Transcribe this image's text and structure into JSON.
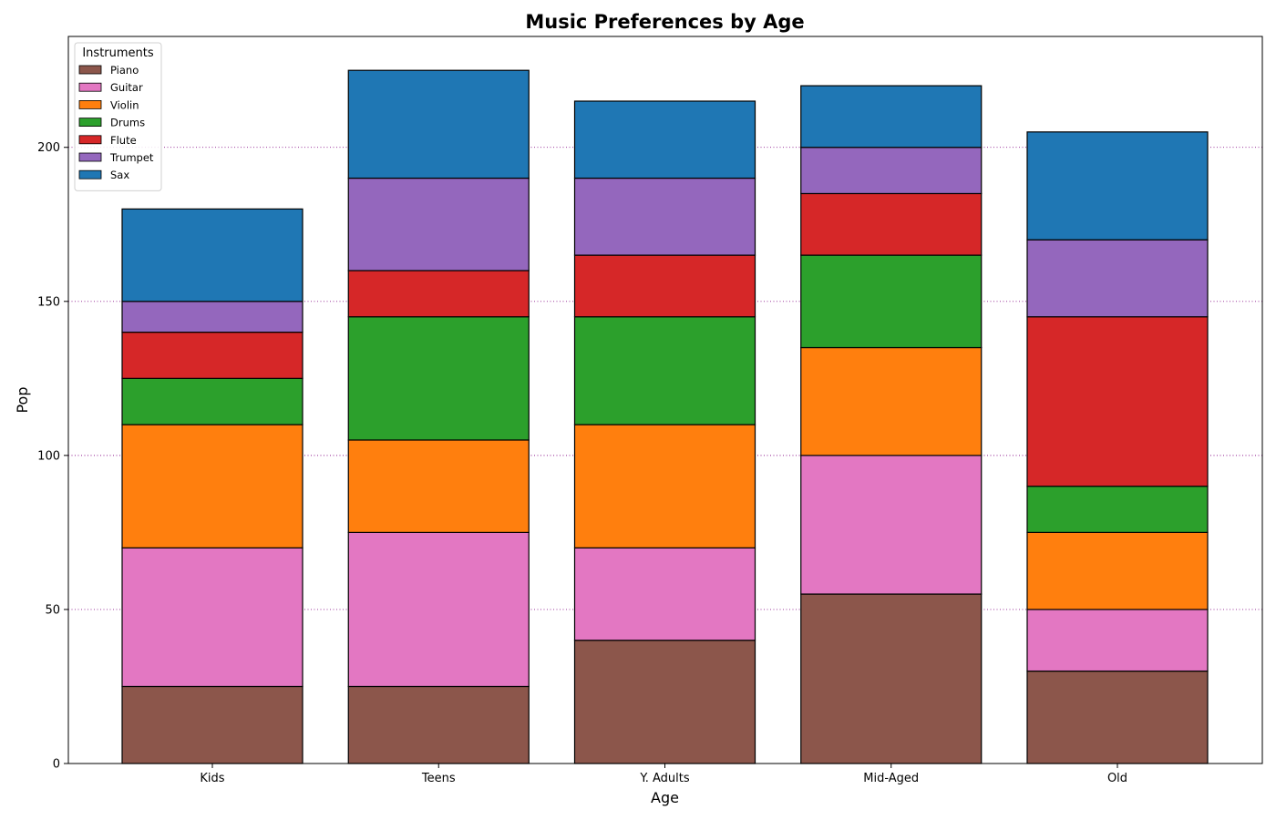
{
  "chart_data": {
    "type": "bar",
    "stacked": true,
    "title": "Music Preferences by Age",
    "xlabel": "Age",
    "ylabel": "Pop",
    "categories": [
      "Kids",
      "Teens",
      "Y. Adults",
      "Mid-Aged",
      "Old"
    ],
    "ylim": [
      0,
      236
    ],
    "yticks": [
      0,
      50,
      100,
      150,
      200
    ],
    "grid": {
      "axis": "y",
      "style": "dotted",
      "color": "#800080"
    },
    "legend": {
      "title": "Instruments",
      "placement": "top-left"
    },
    "series": [
      {
        "name": "Piano",
        "color": "#8c564b",
        "values": [
          25,
          25,
          40,
          55,
          30
        ]
      },
      {
        "name": "Guitar",
        "color": "#e377c2",
        "values": [
          45,
          50,
          30,
          45,
          20
        ]
      },
      {
        "name": "Violin",
        "color": "#ff7f0e",
        "values": [
          40,
          30,
          40,
          35,
          25
        ]
      },
      {
        "name": "Drums",
        "color": "#2ca02c",
        "values": [
          15,
          40,
          35,
          30,
          15
        ]
      },
      {
        "name": "Flute",
        "color": "#d62728",
        "values": [
          15,
          15,
          20,
          20,
          55
        ]
      },
      {
        "name": "Trumpet",
        "color": "#9467bd",
        "values": [
          10,
          30,
          25,
          15,
          25
        ]
      },
      {
        "name": "Sax",
        "color": "#1f77b4",
        "values": [
          30,
          35,
          25,
          20,
          35
        ]
      }
    ]
  }
}
